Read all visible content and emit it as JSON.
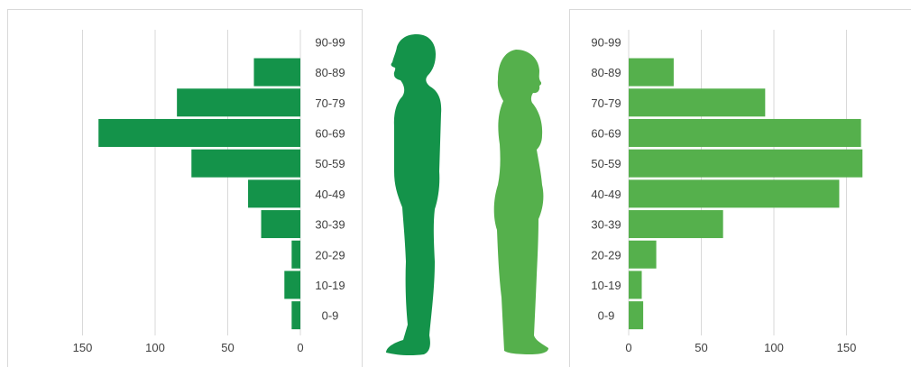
{
  "colors": {
    "male": "#14934a",
    "female": "#55b04c",
    "grid": "#d9d9d9",
    "text": "#404040"
  },
  "silhouettes": [
    "male-silhouette-icon",
    "female-silhouette-icon"
  ],
  "chart_data": [
    {
      "type": "bar",
      "orientation": "horizontal",
      "direction": "right-to-left",
      "categories": [
        "0-9",
        "10-19",
        "20-29",
        "30-39",
        "40-49",
        "50-59",
        "60-69",
        "70-79",
        "80-89",
        "90-99"
      ],
      "values": [
        6,
        11,
        6,
        27,
        36,
        75,
        139,
        85,
        32,
        0
      ],
      "xlim": [
        0,
        150
      ],
      "xticks": [
        150,
        100,
        50,
        0
      ],
      "grid": true,
      "color": "#14934a"
    },
    {
      "type": "bar",
      "orientation": "horizontal",
      "direction": "left-to-right",
      "categories": [
        "0-9",
        "10-19",
        "20-29",
        "30-39",
        "40-49",
        "50-59",
        "60-69",
        "70-79",
        "80-89",
        "90-99"
      ],
      "values": [
        10,
        9,
        19,
        65,
        145,
        161,
        160,
        94,
        31,
        0
      ],
      "xlim": [
        0,
        150
      ],
      "xticks": [
        0,
        50,
        100,
        150
      ],
      "grid": true,
      "color": "#55b04c"
    }
  ]
}
